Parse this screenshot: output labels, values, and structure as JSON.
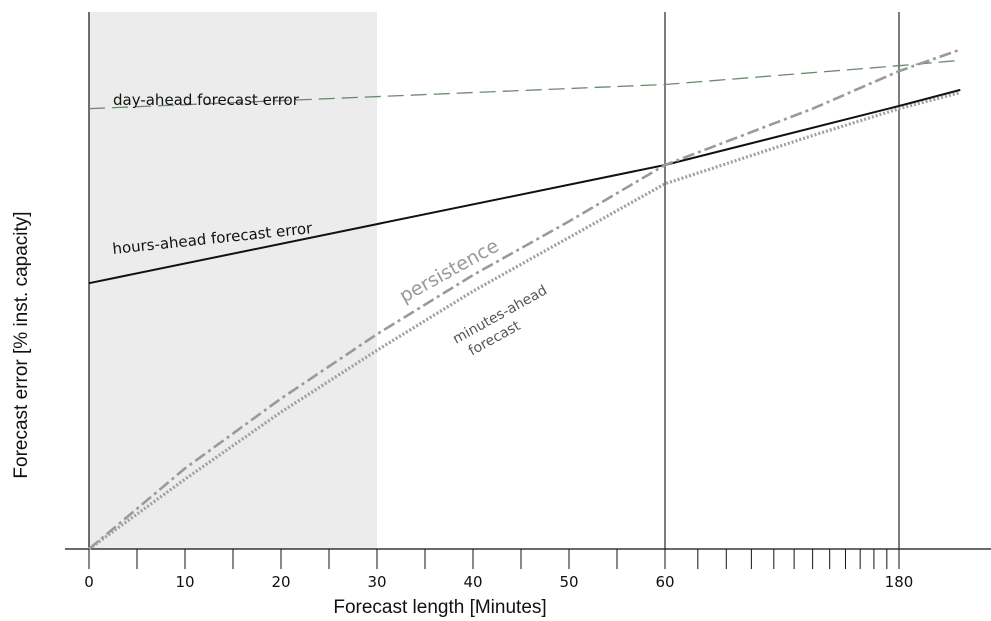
{
  "chart_data": {
    "type": "line",
    "xlabel": "Forecast length [Minutes]",
    "ylabel": "Forecast error [% inst. capacity]",
    "title": "",
    "x_axis": {
      "linear_segment": {
        "from": 0,
        "to": 60
      },
      "log_segment": {
        "from": 60,
        "to": 240
      },
      "tick_labels": [
        "0",
        "10",
        "20",
        "30",
        "40",
        "50",
        "60",
        "180"
      ],
      "reference_lines_at": [
        60,
        180
      ]
    },
    "shaded_region": {
      "x_from": 0,
      "x_to": 30,
      "color": "#ececec"
    },
    "series": [
      {
        "label": "day-ahead forecast error",
        "style": "dashed",
        "color": "#6a8a6a",
        "points": [
          [
            0,
            82
          ],
          [
            60,
            86.5
          ],
          [
            180,
            90
          ],
          [
            240,
            91
          ]
        ]
      },
      {
        "label": "hours-ahead forecast error",
        "style": "solid",
        "color": "#111111",
        "points": [
          [
            0,
            49.5
          ],
          [
            30,
            60.5
          ],
          [
            60,
            71.5
          ],
          [
            180,
            82.5
          ],
          [
            240,
            85.5
          ]
        ]
      },
      {
        "label": "persistence",
        "style": "dash-dot",
        "color": "#9a9a9a",
        "points": [
          [
            0,
            0
          ],
          [
            10,
            15
          ],
          [
            20,
            28
          ],
          [
            30,
            40
          ],
          [
            40,
            51
          ],
          [
            50,
            61
          ],
          [
            60,
            71.5
          ],
          [
            120,
            82
          ],
          [
            180,
            89
          ],
          [
            240,
            93
          ]
        ]
      },
      {
        "label": "minutes-ahead forecast",
        "style": "dotted",
        "color": "#a0a0a0",
        "points": [
          [
            0,
            0
          ],
          [
            10,
            13
          ],
          [
            20,
            25.5
          ],
          [
            30,
            37
          ],
          [
            40,
            48
          ],
          [
            50,
            58
          ],
          [
            60,
            68
          ],
          [
            120,
            77
          ],
          [
            180,
            82
          ],
          [
            240,
            85
          ]
        ]
      }
    ]
  }
}
